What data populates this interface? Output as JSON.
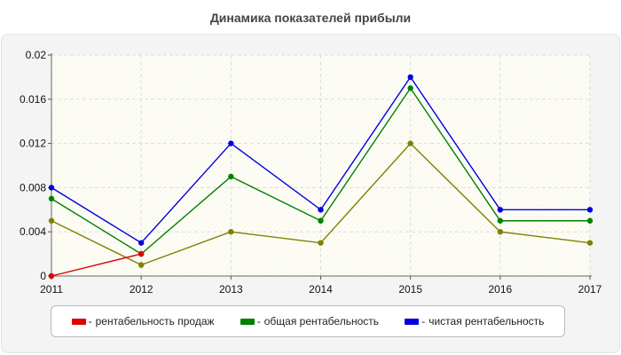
{
  "chart_data": {
    "type": "line",
    "title": "Динамика показателей прибыли",
    "xlabel": "",
    "ylabel": "",
    "x": [
      "2011",
      "2012",
      "2013",
      "2014",
      "2015",
      "2016",
      "2017"
    ],
    "yticks": [
      "0",
      "0.004",
      "0.008",
      "0.012",
      "0.016",
      "0.02"
    ],
    "ylim": [
      0,
      0.02
    ],
    "grid": true,
    "legend_position": "bottom",
    "series": [
      {
        "name": "рентабельность продаж",
        "color": "#e00000",
        "values": [
          0,
          0.002,
          null,
          null,
          null,
          null,
          null
        ]
      },
      {
        "name": "общая рентабельность",
        "color": "#008000",
        "values": [
          0.007,
          0.002,
          0.009,
          0.005,
          0.017,
          0.005,
          0.005
        ]
      },
      {
        "name": "чистая рентабельность",
        "color": "#0000e0",
        "values": [
          0.008,
          0.003,
          0.012,
          0.006,
          0.018,
          0.006,
          0.006
        ]
      },
      {
        "name": "",
        "color": "#808000",
        "values": [
          0.005,
          0.001,
          0.004,
          0.003,
          0.012,
          0.004,
          0.003
        ]
      }
    ],
    "legend_separator": "-"
  }
}
